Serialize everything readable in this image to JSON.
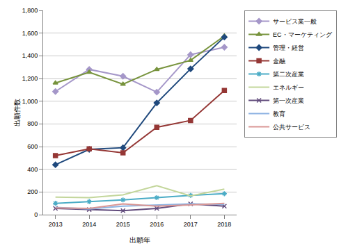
{
  "chart_data": {
    "type": "line",
    "x_label": "出願年",
    "y_label": "出願件数",
    "categories": [
      "2013",
      "2014",
      "2015",
      "2016",
      "2017",
      "2018"
    ],
    "series": [
      {
        "name": "サービス業一般",
        "color": "#a597c9",
        "marker": "diamond",
        "values": [
          1085,
          1280,
          1220,
          1080,
          1410,
          1475
        ]
      },
      {
        "name": "EC・マーケティング",
        "color": "#77933c",
        "marker": "triangle",
        "values": [
          1160,
          1255,
          1150,
          1280,
          1360,
          1575
        ]
      },
      {
        "name": "管理・経営",
        "color": "#1f497d",
        "marker": "diamond",
        "values": [
          440,
          575,
          590,
          985,
          1285,
          1565
        ]
      },
      {
        "name": "金融",
        "color": "#953735",
        "marker": "square",
        "values": [
          520,
          580,
          545,
          770,
          830,
          1095
        ]
      },
      {
        "name": "第二次産業",
        "color": "#4bacc6",
        "marker": "asterisk",
        "values": [
          100,
          115,
          130,
          150,
          170,
          185
        ]
      },
      {
        "name": "エネルギー",
        "color": "#c3d69b",
        "marker": "none",
        "values": [
          155,
          150,
          175,
          255,
          165,
          225
        ]
      },
      {
        "name": "第一次産業",
        "color": "#604a7b",
        "marker": "x",
        "values": [
          55,
          45,
          35,
          55,
          95,
          75
        ]
      },
      {
        "name": "教育",
        "color": "#8db3e2",
        "marker": "none",
        "values": [
          65,
          50,
          75,
          85,
          95,
          90
        ]
      },
      {
        "name": "公共サービス",
        "color": "#d99694",
        "marker": "none",
        "values": [
          60,
          55,
          95,
          75,
          85,
          100
        ]
      }
    ],
    "ylim": [
      0,
      1800
    ],
    "yticks": [
      0,
      200,
      400,
      600,
      800,
      {
        "value": 1000,
        "label": "1,000"
      },
      {
        "value": 1200,
        "label": "1,200"
      },
      {
        "value": 1400,
        "label": "1,400"
      },
      {
        "value": 1600,
        "label": "1,600"
      },
      {
        "value": 1800,
        "label": "1,800"
      }
    ],
    "grid": true,
    "legend": "right"
  }
}
